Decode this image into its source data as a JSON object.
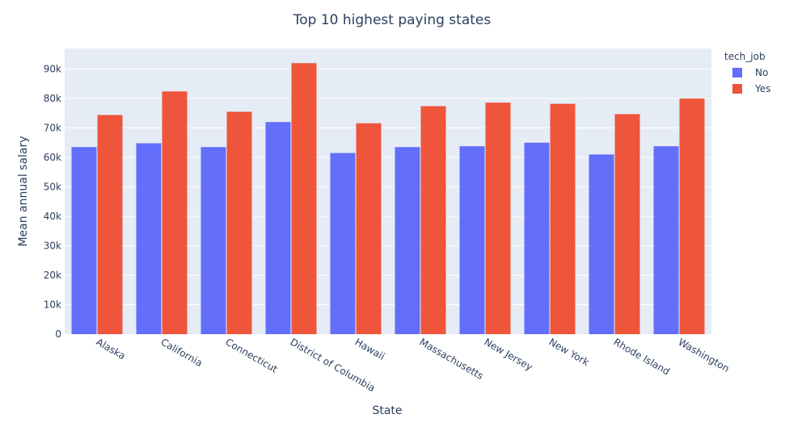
{
  "chart_data": {
    "type": "bar",
    "title": "Top 10 highest paying states",
    "xlabel": "State",
    "ylabel": "Mean annual salary",
    "categories": [
      "Alaska",
      "California",
      "Connecticut",
      "District of Columbia",
      "Hawaii",
      "Massachusetts",
      "New Jersey",
      "New York",
      "Rhode Island",
      "Washington"
    ],
    "series": [
      {
        "name": "No",
        "color": "#636efa",
        "values": [
          63500,
          64800,
          63500,
          72000,
          61500,
          63500,
          63800,
          65000,
          61000,
          63800
        ]
      },
      {
        "name": "Yes",
        "color": "#ef553b",
        "values": [
          74400,
          82400,
          75500,
          92000,
          71600,
          77400,
          78600,
          78200,
          74700,
          80000
        ]
      }
    ],
    "ylim": [
      0,
      97000
    ],
    "yticks": [
      0,
      10000,
      20000,
      30000,
      40000,
      50000,
      60000,
      70000,
      80000,
      90000
    ],
    "ytick_labels": [
      "0",
      "10k",
      "20k",
      "30k",
      "40k",
      "50k",
      "60k",
      "70k",
      "80k",
      "90k"
    ],
    "legend": {
      "title": "tech_job",
      "position": "top-right"
    },
    "grid": true,
    "plot_bg": "#e5ecf6"
  }
}
